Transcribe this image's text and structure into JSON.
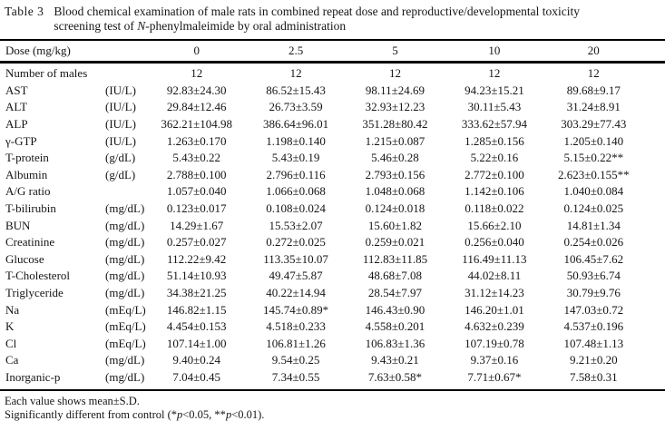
{
  "title": {
    "label": "Table 3",
    "line1": "Blood chemical examination of male rats in combined repeat dose and reproductive/developmental toxicity",
    "line2_prefix": "screening test of ",
    "line2_italic": "N",
    "line2_suffix": "-phenylmaleimide by oral administration"
  },
  "table": {
    "dose_header_label": "Dose (mg/kg)",
    "doses": [
      "0",
      "2.5",
      "5",
      "10",
      "20"
    ],
    "rows": [
      {
        "name": "Number of males",
        "unit": "",
        "values": [
          "12",
          "12",
          "12",
          "12",
          "12"
        ]
      },
      {
        "name": "AST",
        "unit": "(IU/L)",
        "values": [
          "92.83±24.30",
          "86.52±15.43",
          "98.11±24.69",
          "94.23±15.21",
          "89.68±9.17"
        ]
      },
      {
        "name": "ALT",
        "unit": "(IU/L)",
        "values": [
          "29.84±12.46",
          "26.73±3.59",
          "32.93±12.23",
          "30.11±5.43",
          "31.24±8.91"
        ]
      },
      {
        "name": "ALP",
        "unit": "(IU/L)",
        "values": [
          "362.21±104.98",
          "386.64±96.01",
          "351.28±80.42",
          "333.62±57.94",
          "303.29±77.43"
        ]
      },
      {
        "name": "γ-GTP",
        "unit": "(IU/L)",
        "values": [
          "1.263±0.170",
          "1.198±0.140",
          "1.215±0.087",
          "1.285±0.156",
          "1.205±0.140"
        ]
      },
      {
        "name": "T-protein",
        "unit": "(g/dL)",
        "values": [
          "5.43±0.22",
          "5.43±0.19",
          "5.46±0.28",
          "5.22±0.16",
          "5.15±0.22**"
        ]
      },
      {
        "name": "Albumin",
        "unit": "(g/dL)",
        "values": [
          "2.788±0.100",
          "2.796±0.116",
          "2.793±0.156",
          "2.772±0.100",
          "2.623±0.155**"
        ]
      },
      {
        "name": "A/G ratio",
        "unit": "",
        "values": [
          "1.057±0.040",
          "1.066±0.068",
          "1.048±0.068",
          "1.142±0.106",
          "1.040±0.084"
        ]
      },
      {
        "name": "T-bilirubin",
        "unit": "(mg/dL)",
        "values": [
          "0.123±0.017",
          "0.108±0.024",
          "0.124±0.018",
          "0.118±0.022",
          "0.124±0.025"
        ]
      },
      {
        "name": "BUN",
        "unit": "(mg/dL)",
        "values": [
          "14.29±1.67",
          "15.53±2.07",
          "15.60±1.82",
          "15.66±2.10",
          "14.81±1.34"
        ]
      },
      {
        "name": "Creatinine",
        "unit": "(mg/dL)",
        "values": [
          "0.257±0.027",
          "0.272±0.025",
          "0.259±0.021",
          "0.256±0.040",
          "0.254±0.026"
        ]
      },
      {
        "name": "Glucose",
        "unit": "(mg/dL)",
        "values": [
          "112.22±9.42",
          "113.35±10.07",
          "112.83±11.85",
          "116.49±11.13",
          "106.45±7.62"
        ]
      },
      {
        "name": "T-Cholesterol",
        "unit": "(mg/dL)",
        "values": [
          "51.14±10.93",
          "49.47±5.87",
          "48.68±7.08",
          "44.02±8.11",
          "50.93±6.74"
        ]
      },
      {
        "name": "Triglyceride",
        "unit": "(mg/dL)",
        "values": [
          "34.38±21.25",
          "40.22±14.94",
          "28.54±7.97",
          "31.12±14.23",
          "30.79±9.76"
        ]
      },
      {
        "name": "Na",
        "unit": "(mEq/L)",
        "values": [
          "146.82±1.15",
          "145.74±0.89*",
          "146.43±0.90",
          "146.20±1.01",
          "147.03±0.72"
        ]
      },
      {
        "name": "K",
        "unit": "(mEq/L)",
        "values": [
          "4.454±0.153",
          "4.518±0.233",
          "4.558±0.201",
          "4.632±0.239",
          "4.537±0.196"
        ]
      },
      {
        "name": "Cl",
        "unit": "(mEq/L)",
        "values": [
          "107.14±1.00",
          "106.81±1.26",
          "106.83±1.36",
          "107.19±0.78",
          "107.48±1.13"
        ]
      },
      {
        "name": "Ca",
        "unit": "(mg/dL)",
        "values": [
          "9.40±0.24",
          "9.54±0.25",
          "9.43±0.21",
          "9.37±0.16",
          "9.21±0.20"
        ]
      },
      {
        "name": "Inorganic-p",
        "unit": "(mg/dL)",
        "values": [
          "7.04±0.45",
          "7.34±0.55",
          "7.63±0.58*",
          "7.71±0.67*",
          "7.58±0.31"
        ]
      }
    ]
  },
  "footnotes": {
    "line1": "Each value shows mean±S.D.",
    "line2_parts": [
      {
        "text": "Significantly different from control (*",
        "italic": false
      },
      {
        "text": "p",
        "italic": true
      },
      {
        "text": "<0.05, **",
        "italic": false
      },
      {
        "text": "p",
        "italic": true
      },
      {
        "text": "<0.01).",
        "italic": false
      }
    ]
  }
}
